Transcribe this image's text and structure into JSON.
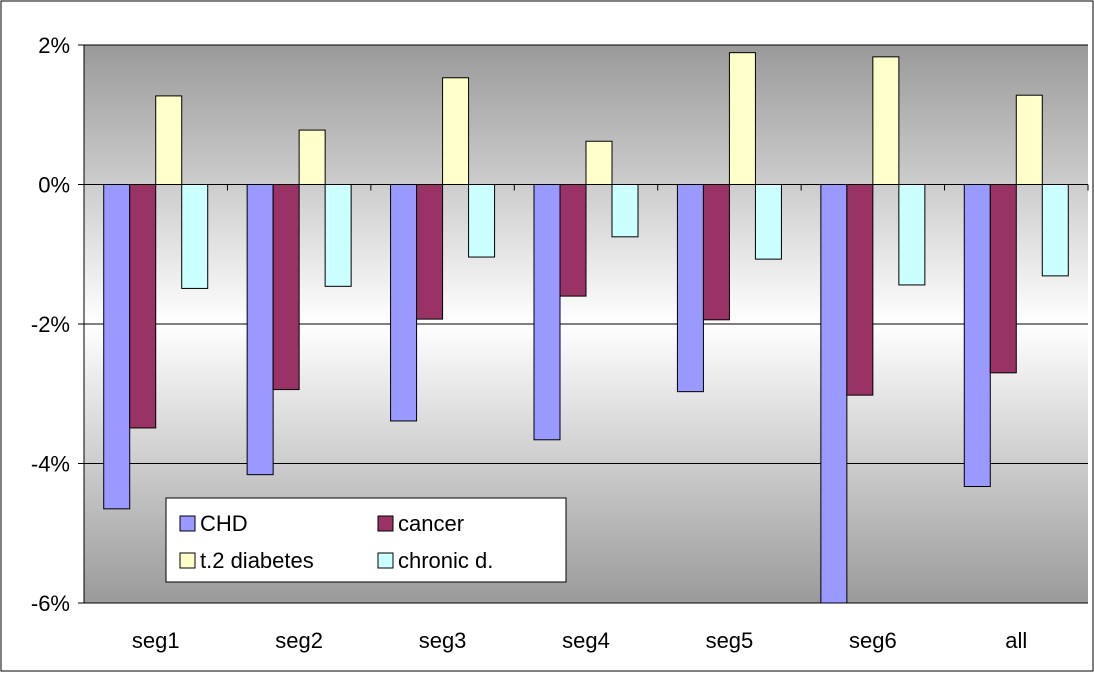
{
  "chart_data": {
    "type": "bar",
    "categories": [
      "seg1",
      "seg2",
      "seg3",
      "seg4",
      "seg5",
      "seg6",
      "all"
    ],
    "series": [
      {
        "name": "CHD",
        "color": "#9999ff",
        "values": [
          -4.65,
          -4.16,
          -3.39,
          -3.66,
          -2.97,
          -6.0,
          -4.33
        ]
      },
      {
        "name": "cancer",
        "color": "#993366",
        "values": [
          -3.49,
          -2.94,
          -1.93,
          -1.6,
          -1.94,
          -3.02,
          -2.7
        ]
      },
      {
        "name": "t.2 diabetes",
        "color": "#ffffcc",
        "values": [
          1.27,
          0.78,
          1.53,
          0.62,
          1.89,
          1.83,
          1.28
        ]
      },
      {
        "name": "chronic d.",
        "color": "#ccffff",
        "values": [
          -1.49,
          -1.46,
          -1.04,
          -0.75,
          -1.07,
          -1.44,
          -1.31
        ]
      }
    ],
    "ylim": [
      -6,
      2
    ],
    "yticks": [
      2,
      0,
      -2,
      -4,
      -6
    ],
    "ytick_labels": [
      "2%",
      "0%",
      "-2%",
      "-4%",
      "-6%"
    ],
    "grid": true,
    "legend_position": "bottom-left",
    "title": "",
    "xlabel": "",
    "ylabel": ""
  }
}
